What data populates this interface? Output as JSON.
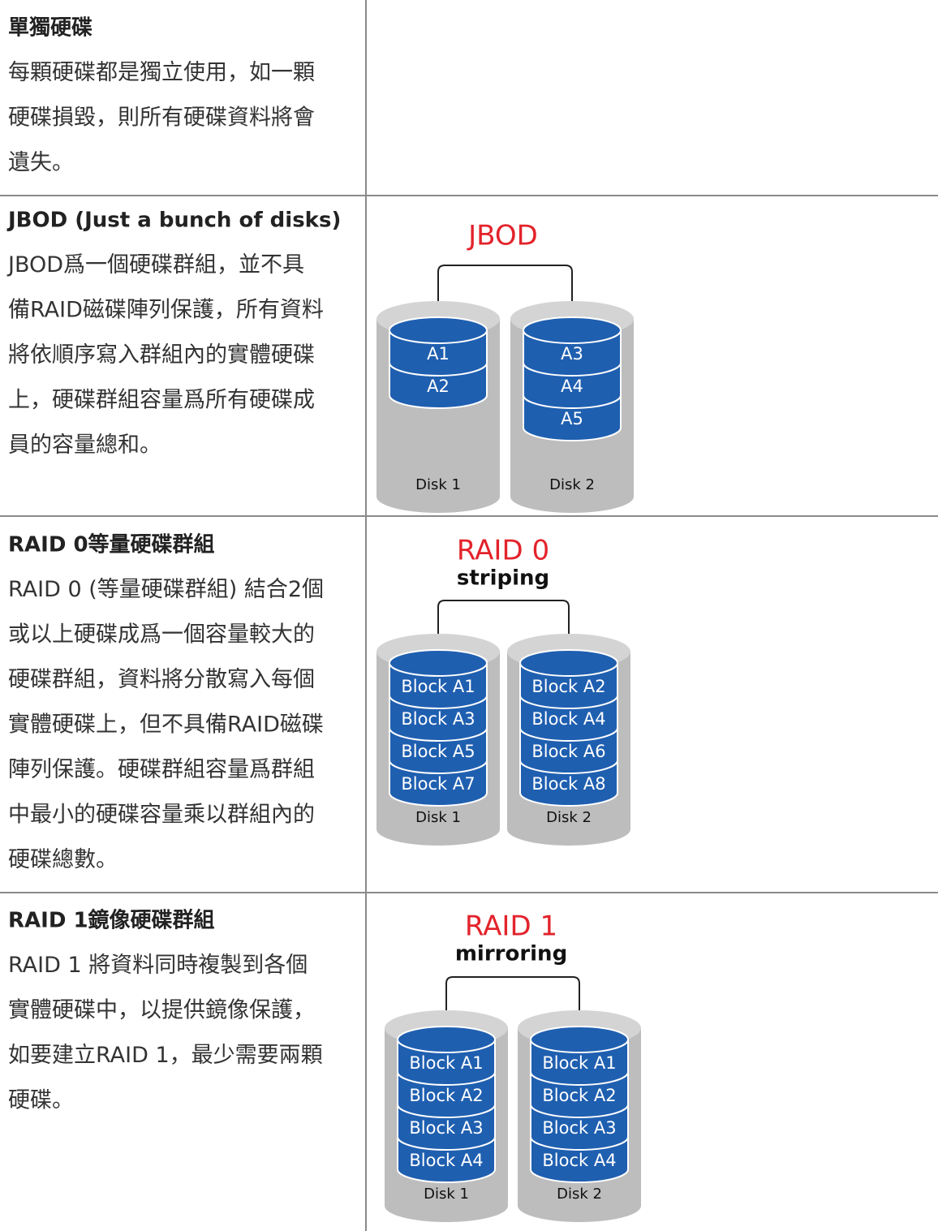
{
  "rows": [
    {
      "title": "單獨硬碟",
      "lines": [
        "每顆硬碟都是獨立使用，如一顆",
        "硬碟損毀，則所有硬碟資料將會",
        "遺失。"
      ]
    },
    {
      "title": "JBOD (Just a bunch of disks)",
      "lines": [
        "JBOD爲一個硬碟群組，並不具",
        "備RAID磁碟陣列保護，所有資料",
        "將依順序寫入群組內的實體硬碟",
        "上，硬碟群組容量爲所有硬碟成",
        "員的容量總和。"
      ],
      "diagram": {
        "title": "JBOD",
        "disks": [
          {
            "label": "Disk 1",
            "blocks": [
              "A1",
              "A2"
            ]
          },
          {
            "label": "Disk 2",
            "blocks": [
              "A3",
              "A4",
              "A5"
            ]
          }
        ]
      }
    },
    {
      "title": "RAID 0等量硬碟群組",
      "lines": [
        "RAID 0 (等量硬碟群組) 結合2個",
        "或以上硬碟成爲一個容量較大的",
        "硬碟群組，資料將分散寫入每個",
        "實體硬碟上，但不具備RAID磁碟",
        "陣列保護。硬碟群組容量爲群組",
        "中最小的硬碟容量乘以群組內的",
        "硬碟總數。"
      ],
      "diagram": {
        "title": "RAID 0",
        "subtitle": "striping",
        "disks": [
          {
            "label": "Disk 1",
            "blocks": [
              "Block A1",
              "Block A3",
              "Block A5",
              "Block A7"
            ]
          },
          {
            "label": "Disk 2",
            "blocks": [
              "Block A2",
              "Block A4",
              "Block A6",
              "Block A8"
            ]
          }
        ]
      }
    },
    {
      "title": "RAID 1鏡像硬碟群組",
      "lines": [
        "RAID 1 將資料同時複製到各個",
        "實體硬碟中，以提供鏡像保護，",
        "如要建立RAID 1，最少需要兩顆",
        "硬碟。"
      ],
      "diagram": {
        "title": "RAID 1",
        "subtitle": "mirroring",
        "disks": [
          {
            "label": "Disk 1",
            "blocks": [
              "Block A1",
              "Block A2",
              "Block A3",
              "Block A4"
            ]
          },
          {
            "label": "Disk 2",
            "blocks": [
              "Block A1",
              "Block A2",
              "Block A3",
              "Block A4"
            ]
          }
        ]
      }
    }
  ]
}
